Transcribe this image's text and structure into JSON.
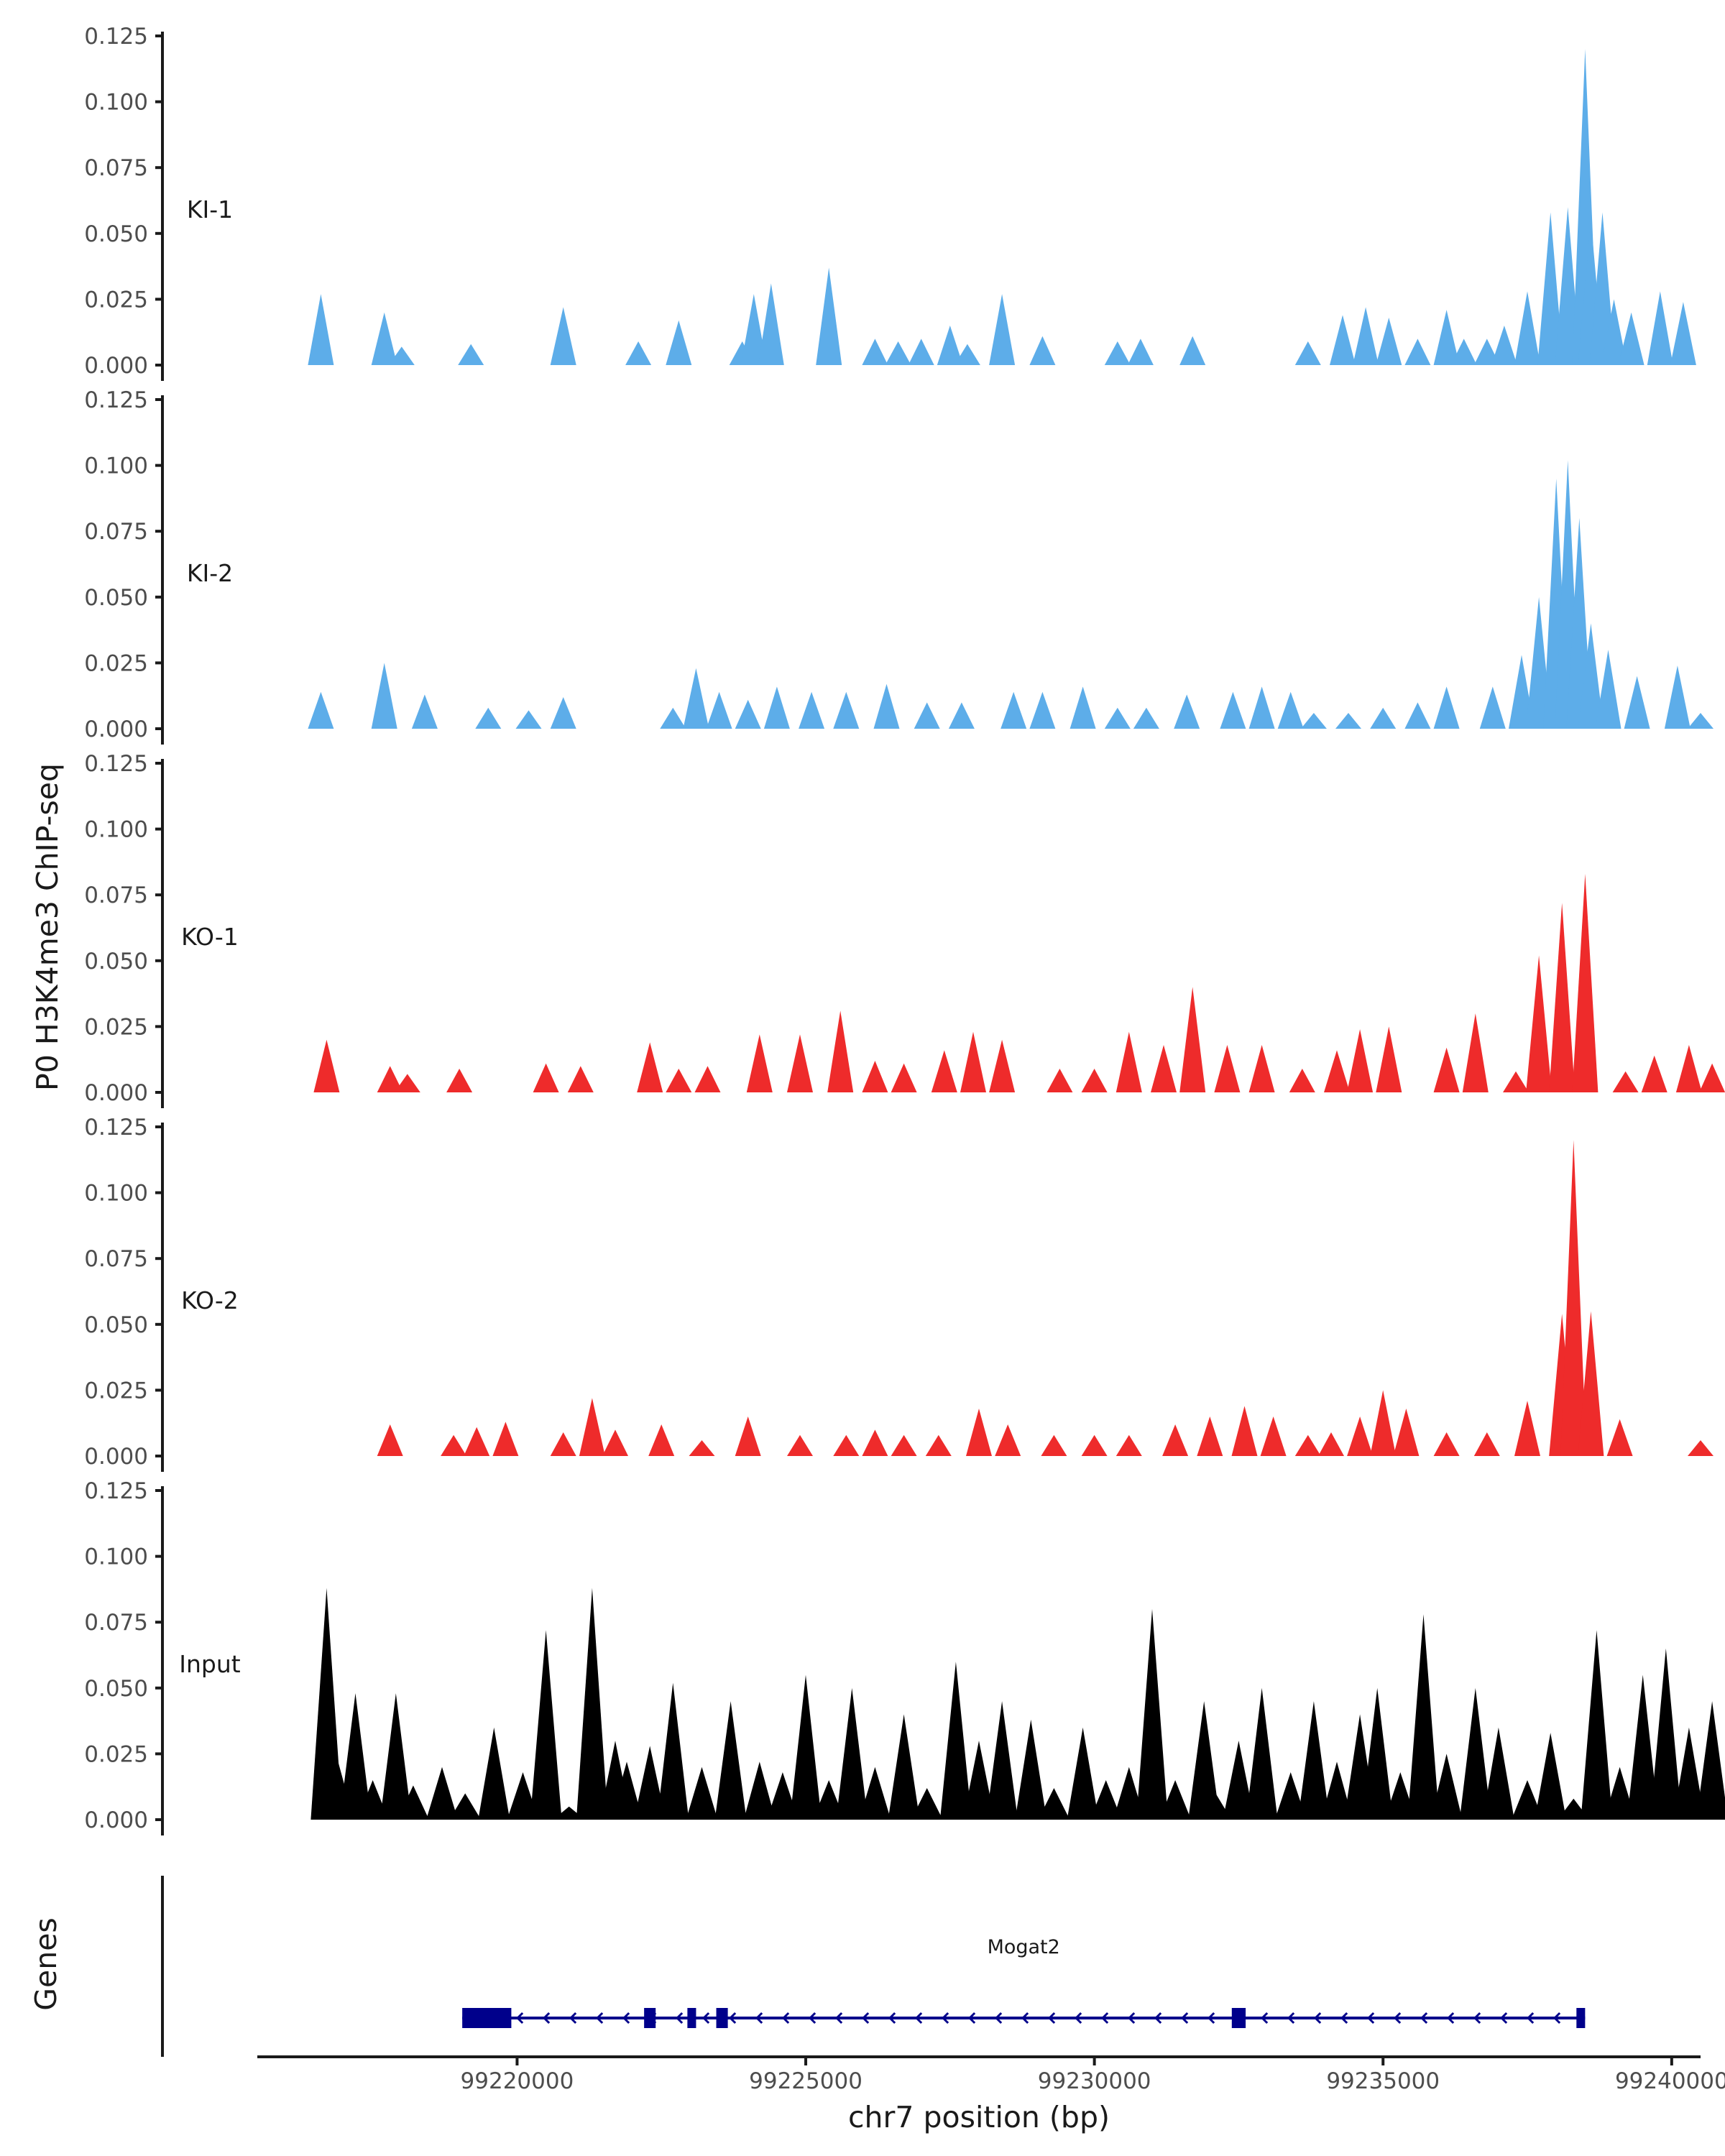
{
  "chart_data": {
    "type": "area",
    "chromosome": "chr7",
    "ylabel": "P0 H3K4me3 ChIP-seq",
    "xlabel": "chr7 position (bp)",
    "xlim": [
      99215500,
      99240500
    ],
    "x_ticks": [
      99220000,
      99225000,
      99230000,
      99235000,
      99240000
    ],
    "x_tick_labels": [
      "99220000",
      "99225000",
      "99230000",
      "99235000",
      "99240000"
    ],
    "ylim": [
      0,
      0.125
    ],
    "y_ticks": [
      0,
      0.025,
      0.05,
      0.075,
      0.1,
      0.125
    ],
    "y_tick_labels": [
      "0.000",
      "0.025",
      "0.050",
      "0.075",
      "0.100",
      "0.125"
    ],
    "genes_label": "Genes",
    "series": [
      {
        "name": "KI-1",
        "color": "#5dade9",
        "x": [
          99216600,
          99217700,
          99218000,
          99219200,
          99220800,
          99222100,
          99222800,
          99223900,
          99224100,
          99224400,
          99225400,
          99226200,
          99226600,
          99227000,
          99227500,
          99227800,
          99228400,
          99229100,
          99230400,
          99230800,
          99231700,
          99233700,
          99234300,
          99234700,
          99235100,
          99235600,
          99236100,
          99236400,
          99236800,
          99237100,
          99237500,
          99237900,
          99238200,
          99238500,
          99238600,
          99238800,
          99239000,
          99239300,
          99239800,
          99240200
        ],
        "values": [
          0.027,
          0.02,
          0.007,
          0.008,
          0.022,
          0.009,
          0.017,
          0.009,
          0.027,
          0.031,
          0.037,
          0.01,
          0.009,
          0.01,
          0.015,
          0.008,
          0.027,
          0.011,
          0.009,
          0.01,
          0.011,
          0.009,
          0.019,
          0.022,
          0.018,
          0.01,
          0.021,
          0.01,
          0.01,
          0.015,
          0.028,
          0.058,
          0.06,
          0.12,
          0.055,
          0.058,
          0.025,
          0.02,
          0.028,
          0.024
        ]
      },
      {
        "name": "KI-2",
        "color": "#5dade9",
        "x": [
          99216600,
          99217700,
          99218400,
          99219500,
          99220200,
          99220800,
          99222700,
          99223100,
          99223500,
          99224000,
          99224500,
          99225100,
          99225700,
          99226400,
          99227100,
          99227700,
          99228600,
          99229100,
          99229800,
          99230400,
          99230900,
          99231600,
          99232400,
          99232900,
          99233400,
          99233800,
          99234400,
          99235000,
          99235600,
          99236100,
          99236900,
          99237400,
          99237700,
          99238000,
          99238200,
          99238400,
          99238600,
          99238900,
          99239400,
          99240100,
          99240500
        ],
        "values": [
          0.014,
          0.025,
          0.013,
          0.008,
          0.007,
          0.012,
          0.008,
          0.023,
          0.014,
          0.011,
          0.016,
          0.014,
          0.014,
          0.017,
          0.01,
          0.01,
          0.014,
          0.014,
          0.016,
          0.008,
          0.008,
          0.013,
          0.014,
          0.016,
          0.014,
          0.006,
          0.006,
          0.008,
          0.01,
          0.016,
          0.016,
          0.028,
          0.05,
          0.095,
          0.102,
          0.08,
          0.04,
          0.03,
          0.02,
          0.024,
          0.006
        ]
      },
      {
        "name": "KO-1",
        "color": "#ee2b2b",
        "x": [
          99216700,
          99217800,
          99218100,
          99219000,
          99220500,
          99221100,
          99222300,
          99222800,
          99223300,
          99224200,
          99224900,
          99225600,
          99226200,
          99226700,
          99227400,
          99227900,
          99228400,
          99229400,
          99230000,
          99230600,
          99231200,
          99231700,
          99232300,
          99232900,
          99233600,
          99234200,
          99234600,
          99235100,
          99236100,
          99236600,
          99237300,
          99237700,
          99238100,
          99238500,
          99239200,
          99239700,
          99240300,
          99240700
        ],
        "values": [
          0.02,
          0.01,
          0.007,
          0.009,
          0.011,
          0.01,
          0.019,
          0.009,
          0.01,
          0.022,
          0.022,
          0.031,
          0.012,
          0.011,
          0.016,
          0.023,
          0.02,
          0.009,
          0.009,
          0.023,
          0.018,
          0.04,
          0.018,
          0.018,
          0.009,
          0.016,
          0.024,
          0.025,
          0.017,
          0.03,
          0.008,
          0.052,
          0.072,
          0.083,
          0.008,
          0.014,
          0.018,
          0.011
        ]
      },
      {
        "name": "KO-2",
        "color": "#ee2b2b",
        "x": [
          99217800,
          99218900,
          99219300,
          99219800,
          99220800,
          99221300,
          99221700,
          99222500,
          99223200,
          99224000,
          99224900,
          99225700,
          99226200,
          99226700,
          99227300,
          99228000,
          99228500,
          99229300,
          99230000,
          99230600,
          99231400,
          99232000,
          99232600,
          99233100,
          99233700,
          99234100,
          99234600,
          99235000,
          99235400,
          99236100,
          99236800,
          99237500,
          99238100,
          99238300,
          99238600,
          99239100,
          99240500
        ],
        "values": [
          0.012,
          0.008,
          0.011,
          0.013,
          0.009,
          0.022,
          0.01,
          0.012,
          0.006,
          0.015,
          0.008,
          0.008,
          0.01,
          0.008,
          0.008,
          0.018,
          0.012,
          0.008,
          0.008,
          0.008,
          0.012,
          0.015,
          0.019,
          0.015,
          0.008,
          0.009,
          0.015,
          0.025,
          0.018,
          0.009,
          0.009,
          0.021,
          0.054,
          0.12,
          0.055,
          0.014,
          0.006
        ]
      },
      {
        "name": "Input",
        "color": "#000000",
        "x": [
          99216700,
          99216900,
          99217200,
          99217500,
          99217900,
          99218200,
          99218700,
          99219100,
          99219600,
          99220100,
          99220500,
          99220900,
          99221300,
          99221700,
          99221900,
          99222300,
          99222700,
          99223200,
          99223700,
          99224200,
          99224600,
          99225000,
          99225400,
          99225800,
          99226200,
          99226700,
          99227100,
          99227600,
          99228000,
          99228400,
          99228900,
          99229300,
          99229800,
          99230200,
          99230600,
          99231000,
          99231400,
          99231900,
          99232100,
          99232500,
          99232900,
          99233400,
          99233800,
          99234200,
          99234600,
          99234900,
          99235300,
          99235700,
          99236100,
          99236600,
          99237000,
          99237500,
          99237900,
          99238300,
          99238700,
          99239100,
          99239500,
          99239900,
          99240300,
          99240700
        ],
        "values": [
          0.088,
          0.022,
          0.048,
          0.015,
          0.048,
          0.013,
          0.02,
          0.01,
          0.035,
          0.018,
          0.072,
          0.005,
          0.088,
          0.03,
          0.022,
          0.028,
          0.052,
          0.02,
          0.045,
          0.022,
          0.018,
          0.055,
          0.015,
          0.05,
          0.02,
          0.04,
          0.012,
          0.06,
          0.03,
          0.045,
          0.038,
          0.012,
          0.035,
          0.015,
          0.02,
          0.08,
          0.015,
          0.045,
          0.01,
          0.03,
          0.05,
          0.018,
          0.045,
          0.022,
          0.04,
          0.05,
          0.018,
          0.078,
          0.025,
          0.05,
          0.035,
          0.015,
          0.033,
          0.008,
          0.072,
          0.02,
          0.055,
          0.065,
          0.035,
          0.045
        ]
      }
    ],
    "gene_track": {
      "gene": "Mogat2",
      "color": "#00008b",
      "start": 99219050,
      "end": 99238500,
      "exons": [
        [
          99219050,
          99219900
        ],
        [
          99222200,
          99222400
        ],
        [
          99222950,
          99223100
        ],
        [
          99223450,
          99223650
        ],
        [
          99232380,
          99232620
        ],
        [
          99238350,
          99238500
        ]
      ]
    }
  }
}
